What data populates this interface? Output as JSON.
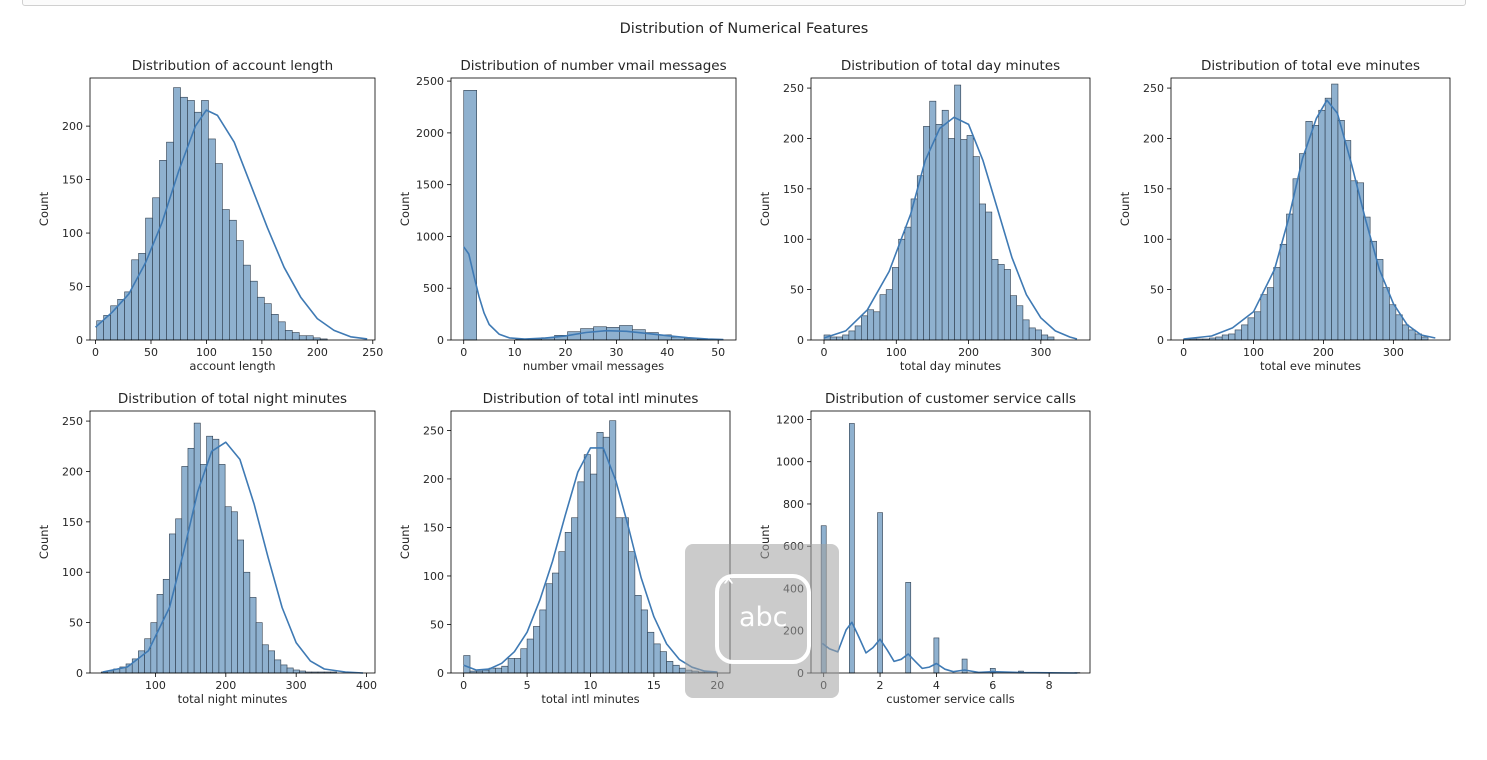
{
  "figure": {
    "suptitle": "Distribution of Numerical Features"
  },
  "colors": {
    "bar_fill": "#8fb1cf",
    "bar_edge": "#2e3d4d",
    "kde_line": "#3f7ab4",
    "axis": "#000000",
    "text": "#262626"
  },
  "overlay": {
    "icon": "text-input-icon",
    "caret": "ˆ",
    "label": "abc"
  },
  "chart_data": [
    {
      "type": "bar",
      "title": "Distribution of account length",
      "xlabel": "account length",
      "ylabel": "Count",
      "xlim": [
        -5,
        252
      ],
      "ylim": [
        0,
        245
      ],
      "xticks": [
        0,
        50,
        100,
        150,
        200,
        250
      ],
      "yticks": [
        0,
        50,
        100,
        150,
        200
      ],
      "bins_start": 1,
      "bin_width": 6.3,
      "counts": [
        18,
        23,
        32,
        38,
        45,
        75,
        81,
        114,
        133,
        168,
        185,
        236,
        227,
        224,
        213,
        224,
        188,
        165,
        122,
        112,
        93,
        70,
        55,
        40,
        34,
        24,
        17,
        9,
        7,
        4,
        4,
        2,
        1
      ],
      "kde": [
        [
          0,
          12
        ],
        [
          15,
          26
        ],
        [
          30,
          43
        ],
        [
          45,
          72
        ],
        [
          60,
          110
        ],
        [
          75,
          158
        ],
        [
          90,
          200
        ],
        [
          100,
          215
        ],
        [
          110,
          210
        ],
        [
          125,
          185
        ],
        [
          140,
          145
        ],
        [
          155,
          105
        ],
        [
          170,
          68
        ],
        [
          185,
          40
        ],
        [
          200,
          20
        ],
        [
          215,
          9
        ],
        [
          230,
          3
        ],
        [
          245,
          1
        ]
      ]
    },
    {
      "type": "bar",
      "title": "Distribution of number vmail messages",
      "xlabel": "number vmail messages",
      "ylabel": "Count",
      "xlim": [
        -2.5,
        53.5
      ],
      "ylim": [
        0,
        2530
      ],
      "xticks": [
        0,
        10,
        20,
        30,
        40,
        50
      ],
      "yticks": [
        0,
        500,
        1000,
        1500,
        2000,
        2500
      ],
      "bins_start": 0,
      "bin_width": 2.55,
      "counts": [
        2411,
        0,
        0,
        0,
        6,
        10,
        22,
        45,
        80,
        110,
        128,
        122,
        140,
        100,
        72,
        50,
        28,
        14,
        6,
        3
      ],
      "kde": [
        [
          0,
          900
        ],
        [
          1,
          830
        ],
        [
          2,
          620
        ],
        [
          3,
          420
        ],
        [
          4,
          260
        ],
        [
          5,
          150
        ],
        [
          7,
          55
        ],
        [
          9,
          20
        ],
        [
          12,
          10
        ],
        [
          16,
          18
        ],
        [
          20,
          40
        ],
        [
          24,
          72
        ],
        [
          28,
          90
        ],
        [
          32,
          84
        ],
        [
          36,
          64
        ],
        [
          40,
          42
        ],
        [
          44,
          22
        ],
        [
          48,
          10
        ],
        [
          51,
          5
        ]
      ]
    },
    {
      "type": "bar",
      "title": "Distribution of total day minutes",
      "xlabel": "total day minutes",
      "ylabel": "Count",
      "xlim": [
        -18,
        368
      ],
      "ylim": [
        0,
        260
      ],
      "xticks": [
        0,
        100,
        200,
        300
      ],
      "yticks": [
        0,
        50,
        100,
        150,
        200,
        250
      ],
      "bins_start": 0,
      "bin_width": 8.6,
      "counts": [
        5,
        3,
        3,
        5,
        9,
        14,
        24,
        30,
        28,
        45,
        50,
        72,
        100,
        112,
        140,
        163,
        212,
        237,
        214,
        228,
        200,
        253,
        199,
        203,
        182,
        135,
        127,
        80,
        75,
        70,
        44,
        34,
        20,
        12,
        10,
        5,
        3
      ],
      "kde": [
        [
          0,
          2
        ],
        [
          30,
          9
        ],
        [
          60,
          30
        ],
        [
          90,
          68
        ],
        [
          120,
          125
        ],
        [
          140,
          178
        ],
        [
          160,
          210
        ],
        [
          180,
          221
        ],
        [
          200,
          214
        ],
        [
          220,
          178
        ],
        [
          240,
          130
        ],
        [
          260,
          82
        ],
        [
          280,
          45
        ],
        [
          300,
          22
        ],
        [
          320,
          9
        ],
        [
          340,
          3
        ],
        [
          350,
          1
        ]
      ]
    },
    {
      "type": "bar",
      "title": "Distribution of total eve minutes",
      "xlabel": "total eve minutes",
      "ylabel": "Count",
      "xlim": [
        -18,
        381
      ],
      "ylim": [
        0,
        260
      ],
      "xticks": [
        0,
        100,
        200,
        300
      ],
      "yticks": [
        0,
        50,
        100,
        150,
        200,
        250
      ],
      "bins_start": 0,
      "bin_width": 9.2,
      "counts": [
        1,
        1,
        1,
        1,
        2,
        3,
        5,
        6,
        10,
        15,
        22,
        28,
        45,
        52,
        72,
        95,
        125,
        160,
        185,
        217,
        213,
        228,
        240,
        254,
        218,
        198,
        158,
        156,
        122,
        98,
        80,
        52,
        35,
        25,
        15,
        10,
        6,
        3
      ],
      "kde": [
        [
          0,
          1
        ],
        [
          40,
          4
        ],
        [
          70,
          12
        ],
        [
          100,
          28
        ],
        [
          130,
          70
        ],
        [
          150,
          120
        ],
        [
          170,
          180
        ],
        [
          190,
          220
        ],
        [
          205,
          238
        ],
        [
          220,
          225
        ],
        [
          240,
          175
        ],
        [
          260,
          120
        ],
        [
          280,
          70
        ],
        [
          300,
          36
        ],
        [
          320,
          15
        ],
        [
          340,
          5
        ],
        [
          360,
          2
        ]
      ]
    },
    {
      "type": "bar",
      "title": "Distribution of total night minutes",
      "xlabel": "total night minutes",
      "ylabel": "Count",
      "xlim": [
        7,
        412
      ],
      "ylim": [
        0,
        260
      ],
      "xticks": [
        100,
        200,
        300,
        400
      ],
      "yticks": [
        0,
        50,
        100,
        150,
        200,
        250
      ],
      "bins_start": 23,
      "bin_width": 8.8,
      "counts": [
        1,
        2,
        4,
        6,
        9,
        14,
        22,
        34,
        50,
        78,
        93,
        138,
        153,
        205,
        223,
        248,
        207,
        235,
        232,
        207,
        165,
        160,
        132,
        100,
        75,
        50,
        28,
        22,
        13,
        8,
        5,
        3,
        2,
        1,
        1,
        1,
        1,
        1
      ],
      "kde": [
        [
          25,
          1
        ],
        [
          60,
          6
        ],
        [
          90,
          22
        ],
        [
          120,
          65
        ],
        [
          140,
          120
        ],
        [
          160,
          180
        ],
        [
          180,
          220
        ],
        [
          200,
          229
        ],
        [
          220,
          212
        ],
        [
          240,
          168
        ],
        [
          260,
          115
        ],
        [
          280,
          65
        ],
        [
          300,
          30
        ],
        [
          320,
          12
        ],
        [
          340,
          4
        ],
        [
          370,
          1
        ],
        [
          395,
          0
        ]
      ]
    },
    {
      "type": "bar",
      "title": "Distribution of total intl minutes",
      "xlabel": "total intl minutes",
      "ylabel": "Count",
      "xlim": [
        -1,
        21
      ],
      "ylim": [
        0,
        270
      ],
      "xticks": [
        0,
        5,
        10,
        15,
        20
      ],
      "yticks": [
        0,
        50,
        100,
        150,
        200,
        250
      ],
      "bins_start": 0,
      "bin_width": 0.5,
      "counts": [
        18,
        2,
        2,
        3,
        5,
        5,
        7,
        15,
        15,
        25,
        35,
        48,
        65,
        92,
        103,
        125,
        145,
        160,
        197,
        225,
        205,
        248,
        243,
        260,
        160,
        160,
        125,
        80,
        65,
        42,
        30,
        22,
        12,
        8,
        5,
        3,
        2,
        1,
        1,
        1
      ],
      "kde": [
        [
          0,
          8
        ],
        [
          1,
          3
        ],
        [
          2,
          4
        ],
        [
          3,
          10
        ],
        [
          4,
          22
        ],
        [
          5,
          42
        ],
        [
          6,
          75
        ],
        [
          7,
          115
        ],
        [
          8,
          162
        ],
        [
          9,
          207
        ],
        [
          10,
          232
        ],
        [
          11,
          232
        ],
        [
          12,
          198
        ],
        [
          13,
          150
        ],
        [
          14,
          98
        ],
        [
          15,
          58
        ],
        [
          16,
          30
        ],
        [
          17,
          14
        ],
        [
          18,
          6
        ],
        [
          19,
          2
        ],
        [
          20,
          1
        ]
      ]
    },
    {
      "type": "bar",
      "title": "Distribution of customer service calls",
      "xlabel": "customer service calls",
      "ylabel": "Count",
      "xlim": [
        -0.45,
        9.45
      ],
      "ylim": [
        0,
        1240
      ],
      "xticks": [
        0,
        2,
        4,
        6,
        8
      ],
      "yticks": [
        0,
        200,
        400,
        600,
        800,
        1000,
        1200
      ],
      "bins_start": 0,
      "bin_width": 0.18,
      "bar_positions": [
        0,
        1,
        2,
        3,
        4,
        5,
        6,
        7,
        8,
        9
      ],
      "counts": [
        697,
        1181,
        759,
        429,
        166,
        66,
        22,
        9,
        2,
        2
      ],
      "kde": [
        [
          -0.05,
          140
        ],
        [
          0.2,
          115
        ],
        [
          0.5,
          100
        ],
        [
          0.8,
          205
        ],
        [
          1.0,
          240
        ],
        [
          1.25,
          170
        ],
        [
          1.5,
          95
        ],
        [
          1.75,
          120
        ],
        [
          2.0,
          160
        ],
        [
          2.25,
          110
        ],
        [
          2.5,
          55
        ],
        [
          2.75,
          65
        ],
        [
          3.0,
          90
        ],
        [
          3.25,
          55
        ],
        [
          3.5,
          22
        ],
        [
          3.75,
          28
        ],
        [
          4.0,
          45
        ],
        [
          4.3,
          18
        ],
        [
          4.6,
          6
        ],
        [
          5.0,
          14
        ],
        [
          5.5,
          3
        ],
        [
          6.0,
          6
        ],
        [
          7.0,
          2
        ],
        [
          8.0,
          1
        ],
        [
          9.0,
          0
        ]
      ]
    }
  ]
}
